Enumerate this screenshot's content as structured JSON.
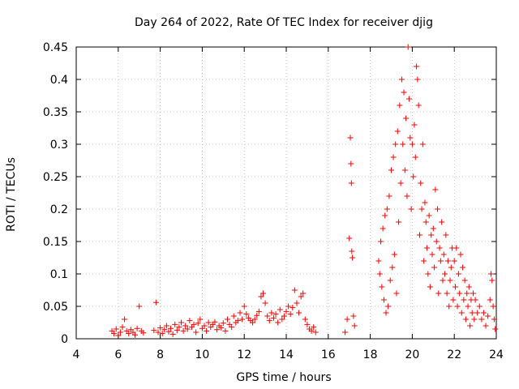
{
  "chart_data": {
    "type": "scatter",
    "title": "Day 264 of 2022, Rate Of TEC Index for receiver djig",
    "xlabel": "GPS time / hours",
    "ylabel": "ROTI / TECUs",
    "xlim": [
      4,
      24
    ],
    "ylim": [
      0,
      0.45
    ],
    "x_ticks": [
      "4",
      "6",
      "8",
      "10",
      "12",
      "14",
      "16",
      "18",
      "20",
      "22",
      "24"
    ],
    "y_ticks": [
      "0",
      "0.05",
      "0.1",
      "0.15",
      "0.2",
      "0.25",
      "0.3",
      "0.35",
      "0.4",
      "0.45"
    ],
    "grid": true,
    "marker": "+",
    "color": "#ff0000",
    "series": [
      {
        "points": [
          [
            5.7,
            0.012
          ],
          [
            5.8,
            0.008
          ],
          [
            5.9,
            0.015
          ],
          [
            6.0,
            0.005
          ],
          [
            6.1,
            0.01
          ],
          [
            6.2,
            0.018
          ],
          [
            6.3,
            0.03
          ],
          [
            6.4,
            0.012
          ],
          [
            6.5,
            0.008
          ],
          [
            6.6,
            0.014
          ],
          [
            6.7,
            0.01
          ],
          [
            6.8,
            0.006
          ],
          [
            6.9,
            0.016
          ],
          [
            7.0,
            0.05
          ],
          [
            7.1,
            0.012
          ],
          [
            7.2,
            0.009
          ],
          [
            7.7,
            0.013
          ],
          [
            7.8,
            0.056
          ],
          [
            7.9,
            0.01
          ],
          [
            8.0,
            0.017
          ],
          [
            8.1,
            0.008
          ],
          [
            8.2,
            0.014
          ],
          [
            8.3,
            0.02
          ],
          [
            8.4,
            0.011
          ],
          [
            8.5,
            0.016
          ],
          [
            8.6,
            0.007
          ],
          [
            8.7,
            0.022
          ],
          [
            8.8,
            0.013
          ],
          [
            8.9,
            0.018
          ],
          [
            9.0,
            0.025
          ],
          [
            9.1,
            0.012
          ],
          [
            9.2,
            0.02
          ],
          [
            9.3,
            0.015
          ],
          [
            9.4,
            0.028
          ],
          [
            9.5,
            0.018
          ],
          [
            9.6,
            0.022
          ],
          [
            9.7,
            0.01
          ],
          [
            9.8,
            0.024
          ],
          [
            9.9,
            0.03
          ],
          [
            10.0,
            0.016
          ],
          [
            10.1,
            0.02
          ],
          [
            10.2,
            0.012
          ],
          [
            10.3,
            0.025
          ],
          [
            10.4,
            0.018
          ],
          [
            10.5,
            0.022
          ],
          [
            10.6,
            0.026
          ],
          [
            10.7,
            0.014
          ],
          [
            10.8,
            0.02
          ],
          [
            10.9,
            0.017
          ],
          [
            11.0,
            0.024
          ],
          [
            11.1,
            0.012
          ],
          [
            11.2,
            0.03
          ],
          [
            11.3,
            0.022
          ],
          [
            11.4,
            0.018
          ],
          [
            11.5,
            0.035
          ],
          [
            11.6,
            0.025
          ],
          [
            11.7,
            0.028
          ],
          [
            11.8,
            0.04
          ],
          [
            11.9,
            0.03
          ],
          [
            12.0,
            0.05
          ],
          [
            12.1,
            0.038
          ],
          [
            12.2,
            0.032
          ],
          [
            12.3,
            0.028
          ],
          [
            12.4,
            0.025
          ],
          [
            12.5,
            0.03
          ],
          [
            12.6,
            0.036
          ],
          [
            12.7,
            0.042
          ],
          [
            12.8,
            0.065
          ],
          [
            12.9,
            0.07
          ],
          [
            13.0,
            0.055
          ],
          [
            13.1,
            0.035
          ],
          [
            13.2,
            0.028
          ],
          [
            13.3,
            0.04
          ],
          [
            13.4,
            0.032
          ],
          [
            13.5,
            0.038
          ],
          [
            13.6,
            0.025
          ],
          [
            13.7,
            0.045
          ],
          [
            13.8,
            0.03
          ],
          [
            13.9,
            0.035
          ],
          [
            14.0,
            0.042
          ],
          [
            14.1,
            0.05
          ],
          [
            14.2,
            0.038
          ],
          [
            14.3,
            0.048
          ],
          [
            14.4,
            0.075
          ],
          [
            14.5,
            0.055
          ],
          [
            14.6,
            0.04
          ],
          [
            14.7,
            0.065
          ],
          [
            14.8,
            0.07
          ],
          [
            14.9,
            0.03
          ],
          [
            15.0,
            0.022
          ],
          [
            15.1,
            0.015
          ],
          [
            15.2,
            0.012
          ],
          [
            15.3,
            0.018
          ],
          [
            15.4,
            0.01
          ],
          [
            16.8,
            0.01
          ],
          [
            16.9,
            0.03
          ],
          [
            17.0,
            0.155
          ],
          [
            17.05,
            0.31
          ],
          [
            17.08,
            0.27
          ],
          [
            17.1,
            0.24
          ],
          [
            17.12,
            0.135
          ],
          [
            17.15,
            0.125
          ],
          [
            17.2,
            0.035
          ],
          [
            17.25,
            0.02
          ],
          [
            18.4,
            0.12
          ],
          [
            18.45,
            0.1
          ],
          [
            18.5,
            0.15
          ],
          [
            18.55,
            0.08
          ],
          [
            18.6,
            0.17
          ],
          [
            18.65,
            0.06
          ],
          [
            18.7,
            0.19
          ],
          [
            18.75,
            0.04
          ],
          [
            18.8,
            0.2
          ],
          [
            18.85,
            0.05
          ],
          [
            18.9,
            0.22
          ],
          [
            18.95,
            0.09
          ],
          [
            19.0,
            0.26
          ],
          [
            19.05,
            0.11
          ],
          [
            19.1,
            0.28
          ],
          [
            19.15,
            0.13
          ],
          [
            19.2,
            0.3
          ],
          [
            19.25,
            0.07
          ],
          [
            19.3,
            0.32
          ],
          [
            19.35,
            0.18
          ],
          [
            19.4,
            0.36
          ],
          [
            19.45,
            0.24
          ],
          [
            19.5,
            0.4
          ],
          [
            19.55,
            0.3
          ],
          [
            19.6,
            0.38
          ],
          [
            19.65,
            0.26
          ],
          [
            19.7,
            0.34
          ],
          [
            19.75,
            0.22
          ],
          [
            19.8,
            0.45
          ],
          [
            19.85,
            0.37
          ],
          [
            19.9,
            0.31
          ],
          [
            19.95,
            0.2
          ],
          [
            20.0,
            0.3
          ],
          [
            20.05,
            0.25
          ],
          [
            20.1,
            0.33
          ],
          [
            20.15,
            0.28
          ],
          [
            20.2,
            0.42
          ],
          [
            20.25,
            0.4
          ],
          [
            20.3,
            0.36
          ],
          [
            20.35,
            0.16
          ],
          [
            20.4,
            0.24
          ],
          [
            20.45,
            0.2
          ],
          [
            20.5,
            0.3
          ],
          [
            20.55,
            0.12
          ],
          [
            20.6,
            0.21
          ],
          [
            20.65,
            0.18
          ],
          [
            20.7,
            0.14
          ],
          [
            20.75,
            0.1
          ],
          [
            20.8,
            0.19
          ],
          [
            20.85,
            0.08
          ],
          [
            20.9,
            0.16
          ],
          [
            20.95,
            0.13
          ],
          [
            21.0,
            0.17
          ],
          [
            21.05,
            0.11
          ],
          [
            21.1,
            0.23
          ],
          [
            21.15,
            0.15
          ],
          [
            21.2,
            0.2
          ],
          [
            21.25,
            0.07
          ],
          [
            21.3,
            0.14
          ],
          [
            21.35,
            0.12
          ],
          [
            21.4,
            0.18
          ],
          [
            21.45,
            0.09
          ],
          [
            21.5,
            0.13
          ],
          [
            21.55,
            0.1
          ],
          [
            21.6,
            0.16
          ],
          [
            21.65,
            0.07
          ],
          [
            21.7,
            0.12
          ],
          [
            21.75,
            0.05
          ],
          [
            21.8,
            0.09
          ],
          [
            21.85,
            0.11
          ],
          [
            21.9,
            0.14
          ],
          [
            21.95,
            0.06
          ],
          [
            22.0,
            0.12
          ],
          [
            22.05,
            0.08
          ],
          [
            22.1,
            0.14
          ],
          [
            22.15,
            0.05
          ],
          [
            22.2,
            0.1
          ],
          [
            22.25,
            0.07
          ],
          [
            22.3,
            0.13
          ],
          [
            22.35,
            0.04
          ],
          [
            22.4,
            0.11
          ],
          [
            22.45,
            0.06
          ],
          [
            22.5,
            0.09
          ],
          [
            22.55,
            0.03
          ],
          [
            22.6,
            0.07
          ],
          [
            22.65,
            0.05
          ],
          [
            22.7,
            0.08
          ],
          [
            22.75,
            0.02
          ],
          [
            22.8,
            0.06
          ],
          [
            22.85,
            0.04
          ],
          [
            22.9,
            0.07
          ],
          [
            22.95,
            0.03
          ],
          [
            23.0,
            0.06
          ],
          [
            23.1,
            0.04
          ],
          [
            23.2,
            0.05
          ],
          [
            23.3,
            0.03
          ],
          [
            23.4,
            0.04
          ],
          [
            23.5,
            0.02
          ],
          [
            23.6,
            0.035
          ],
          [
            23.7,
            0.06
          ],
          [
            23.75,
            0.1
          ],
          [
            23.8,
            0.09
          ],
          [
            23.85,
            0.05
          ],
          [
            23.9,
            0.03
          ],
          [
            23.95,
            0.015
          ]
        ]
      }
    ]
  }
}
